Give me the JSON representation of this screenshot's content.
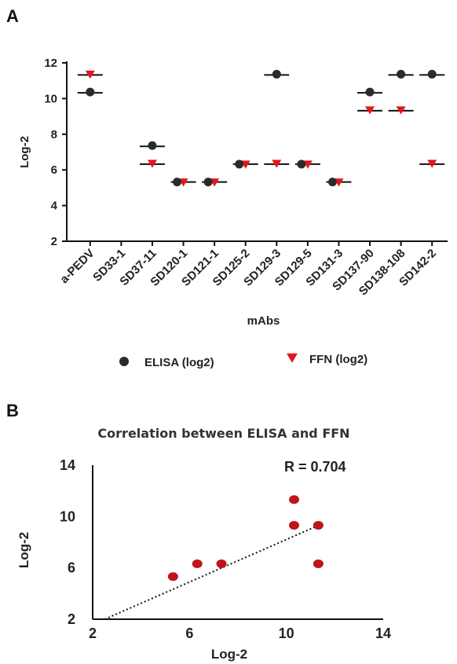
{
  "colors": {
    "elisa": "#2b2b2b",
    "ffn": "#e8141b",
    "scatter": "#c0141b",
    "axis": "#111111"
  },
  "chart_data": [
    {
      "panel": "A",
      "type": "scatter",
      "ylabel": "Log-2",
      "xlabel": "mAbs",
      "ylim": [
        2,
        12
      ],
      "yticks": [
        2,
        4,
        6,
        8,
        10,
        12
      ],
      "categories": [
        "a-PEDV",
        "SD33-1",
        "SD37-11",
        "SD120-1",
        "SD121-1",
        "SD125-2",
        "SD129-3",
        "SD129-5",
        "SD131-3",
        "SD137-90",
        "SD138-108",
        "SD142-2"
      ],
      "series": [
        {
          "name": "ELISA (log2)",
          "marker": "circle",
          "values": [
            10.32,
            null,
            7.32,
            5.32,
            5.32,
            6.32,
            11.32,
            6.32,
            5.32,
            10.32,
            11.32,
            11.32
          ]
        },
        {
          "name": "FFN (log2)",
          "marker": "triangle-down",
          "values": [
            11.32,
            null,
            6.32,
            5.32,
            5.32,
            6.32,
            6.32,
            6.32,
            5.32,
            9.32,
            9.32,
            6.32
          ]
        }
      ],
      "legend_position": "bottom"
    },
    {
      "panel": "B",
      "type": "scatter",
      "title": "Correlation between ELISA and FFN",
      "xlabel": "Log-2",
      "ylabel": "Log-2",
      "xlim": [
        2,
        14
      ],
      "ylim": [
        2,
        14
      ],
      "xticks": [
        2,
        6,
        10,
        14
      ],
      "yticks": [
        2,
        6,
        10,
        14
      ],
      "annotation": "R = 0.704",
      "points": [
        {
          "x": 5.32,
          "y": 5.32
        },
        {
          "x": 6.32,
          "y": 6.32
        },
        {
          "x": 7.32,
          "y": 6.32
        },
        {
          "x": 10.32,
          "y": 11.32
        },
        {
          "x": 10.32,
          "y": 9.32
        },
        {
          "x": 11.32,
          "y": 9.32
        },
        {
          "x": 11.32,
          "y": 6.32
        }
      ],
      "trendline": {
        "style": "dotted",
        "from": [
          2.5,
          2
        ],
        "to": [
          11.2,
          9.2
        ]
      }
    }
  ]
}
